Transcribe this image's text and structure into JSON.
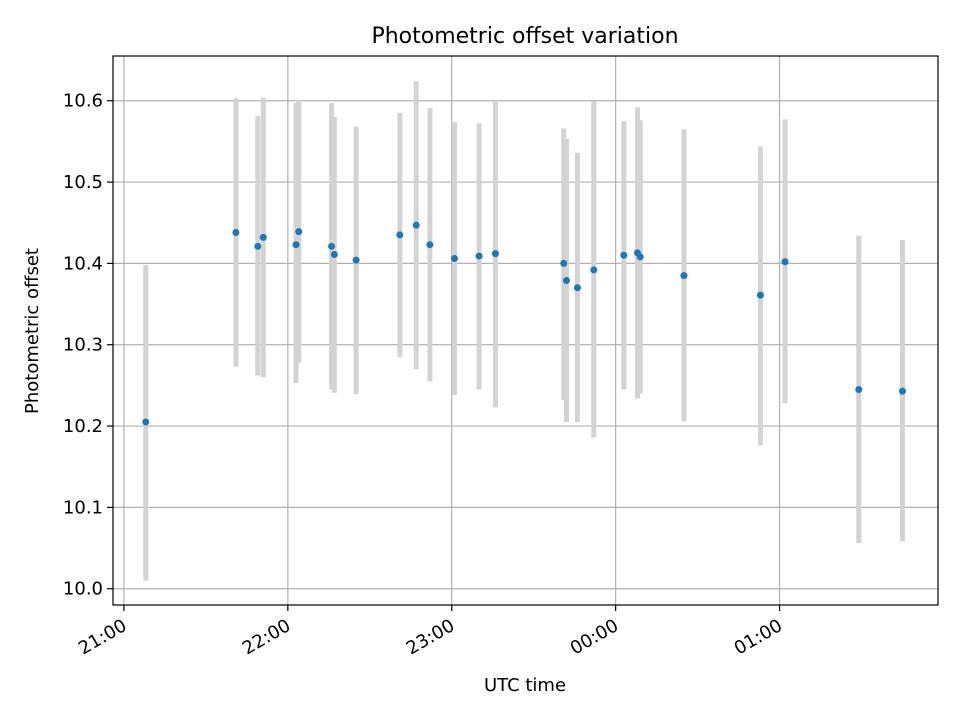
{
  "chart_data": {
    "type": "scatter",
    "title": "Photometric offset variation",
    "xlabel": "UTC time",
    "ylabel": "Photometric offset",
    "xlim": [
      "20:56",
      "22:00 +1d 01:57"
    ],
    "xlim_minutes_from_21": [
      -4,
      298
    ],
    "ylim": [
      9.98,
      10.655
    ],
    "grid": true,
    "x_ticks": [
      "21:00",
      "22:00",
      "23:00",
      "00:00",
      "01:00"
    ],
    "y_ticks": [
      "10.0",
      "10.1",
      "10.2",
      "10.3",
      "10.4",
      "10.5",
      "10.6"
    ],
    "y_tick_values": [
      10.0,
      10.1,
      10.2,
      10.3,
      10.4,
      10.5,
      10.6
    ],
    "colors": {
      "point": "#1f77b4",
      "errorbar": "#d3d3d3",
      "grid": "#b0b0b0"
    },
    "points": [
      {
        "time": "21:08",
        "y": 10.205,
        "lo": 10.01,
        "hi": 10.398
      },
      {
        "time": "21:41",
        "y": 10.438,
        "lo": 10.273,
        "hi": 10.603
      },
      {
        "time": "21:49",
        "y": 10.421,
        "lo": 10.262,
        "hi": 10.581
      },
      {
        "time": "21:51",
        "y": 10.432,
        "lo": 10.26,
        "hi": 10.604
      },
      {
        "time": "22:03",
        "y": 10.423,
        "lo": 10.253,
        "hi": 10.597
      },
      {
        "time": "22:04",
        "y": 10.439,
        "lo": 10.278,
        "hi": 10.601
      },
      {
        "time": "22:16",
        "y": 10.421,
        "lo": 10.245,
        "hi": 10.597
      },
      {
        "time": "22:17",
        "y": 10.411,
        "lo": 10.241,
        "hi": 10.58
      },
      {
        "time": "22:25",
        "y": 10.404,
        "lo": 10.239,
        "hi": 10.568
      },
      {
        "time": "22:41",
        "y": 10.435,
        "lo": 10.285,
        "hi": 10.585
      },
      {
        "time": "22:47",
        "y": 10.447,
        "lo": 10.27,
        "hi": 10.624
      },
      {
        "time": "22:52",
        "y": 10.423,
        "lo": 10.255,
        "hi": 10.591
      },
      {
        "time": "23:01",
        "y": 10.406,
        "lo": 10.238,
        "hi": 10.574
      },
      {
        "time": "23:10",
        "y": 10.409,
        "lo": 10.245,
        "hi": 10.572
      },
      {
        "time": "23:16",
        "y": 10.412,
        "lo": 10.223,
        "hi": 10.601
      },
      {
        "time": "23:41",
        "y": 10.4,
        "lo": 10.232,
        "hi": 10.566
      },
      {
        "time": "23:42",
        "y": 10.379,
        "lo": 10.205,
        "hi": 10.553
      },
      {
        "time": "23:46",
        "y": 10.37,
        "lo": 10.205,
        "hi": 10.536
      },
      {
        "time": "23:52",
        "y": 10.392,
        "lo": 10.186,
        "hi": 10.599
      },
      {
        "time": "00:03",
        "y": 10.41,
        "lo": 10.245,
        "hi": 10.575
      },
      {
        "time": "00:08",
        "y": 10.413,
        "lo": 10.234,
        "hi": 10.592
      },
      {
        "time": "00:09",
        "y": 10.408,
        "lo": 10.24,
        "hi": 10.576
      },
      {
        "time": "00:25",
        "y": 10.385,
        "lo": 10.206,
        "hi": 10.565
      },
      {
        "time": "00:53",
        "y": 10.361,
        "lo": 10.176,
        "hi": 10.544
      },
      {
        "time": "01:02",
        "y": 10.402,
        "lo": 10.228,
        "hi": 10.577
      },
      {
        "time": "01:29",
        "y": 10.245,
        "lo": 10.056,
        "hi": 10.434
      },
      {
        "time": "01:45",
        "y": 10.243,
        "lo": 10.058,
        "hi": 10.429
      }
    ]
  }
}
